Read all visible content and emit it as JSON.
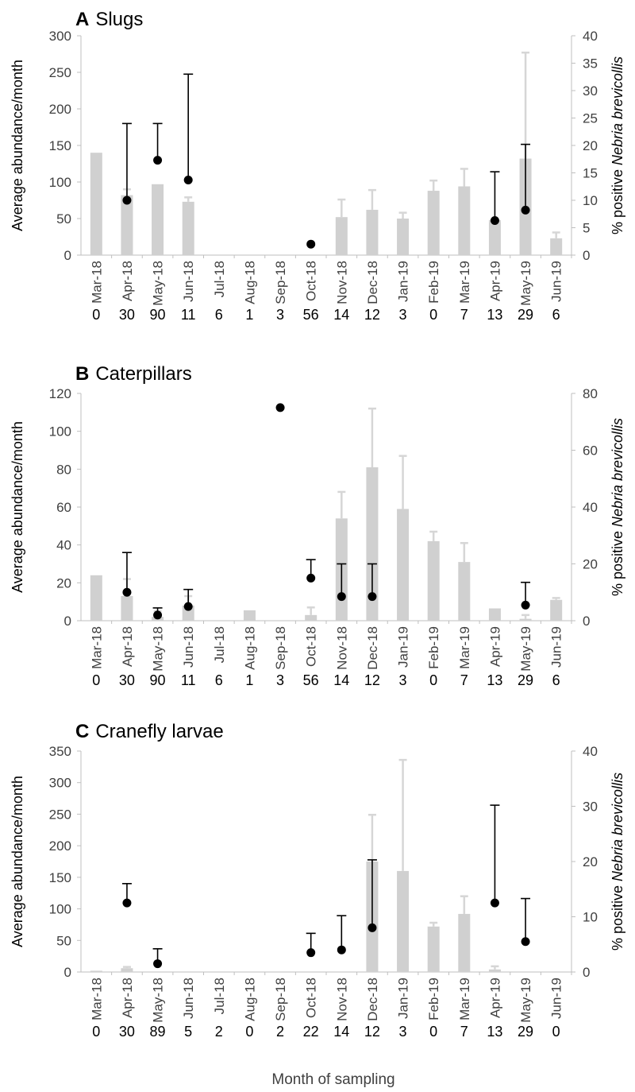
{
  "xlabel": "Month of sampling",
  "colors": {
    "bar": "#d0d0d0",
    "errbar_bar": "#d6d6d6",
    "point": "#000000",
    "axis": "#bfbfbf",
    "text": "#404040"
  },
  "chart_data": [
    {
      "type": "bar",
      "letter": "A",
      "title": "Slugs",
      "ylabel": "Average abundance/month",
      "y2label_prefix": "% positive ",
      "y2label_species": "Nebria brevicollis",
      "ylim": [
        0,
        300
      ],
      "yticks": [
        0,
        50,
        100,
        150,
        200,
        250,
        300
      ],
      "y2lim": [
        0,
        40
      ],
      "y2ticks": [
        0,
        5,
        10,
        15,
        20,
        25,
        30,
        35,
        40
      ],
      "categories": [
        "Mar-18",
        "Apr-18",
        "May-18",
        "Jun-18",
        "Jul-18",
        "Aug-18",
        "Sep-18",
        "Oct-18",
        "Nov-18",
        "Dec-18",
        "Jan-19",
        "Feb-19",
        "Mar-19",
        "Apr-19",
        "May-19",
        "Jun-19"
      ],
      "counts": [
        "0",
        "30",
        "90",
        "11",
        "6",
        "1",
        "3",
        "56",
        "14",
        "12",
        "3",
        "0",
        "7",
        "13",
        "29",
        "6"
      ],
      "series": [
        {
          "kind": "bar",
          "axis": "left",
          "values": [
            140,
            82,
            97,
            73,
            0,
            0,
            0,
            0,
            52,
            62,
            50,
            88,
            94,
            48,
            132,
            23
          ],
          "errors": [
            0,
            8,
            0,
            6,
            0,
            0,
            0,
            0,
            24,
            27,
            8,
            14,
            24,
            0,
            145,
            8
          ]
        },
        {
          "kind": "point",
          "axis": "right",
          "values": [
            null,
            10,
            17.3,
            13.7,
            null,
            null,
            null,
            2,
            null,
            null,
            null,
            null,
            null,
            6.3,
            8.2,
            null
          ],
          "errors": [
            null,
            14,
            6.7,
            19.3,
            null,
            null,
            null,
            0,
            null,
            null,
            null,
            null,
            null,
            8.9,
            12,
            null
          ]
        }
      ]
    },
    {
      "type": "bar",
      "letter": "B",
      "title": "Caterpillars",
      "ylabel": "Average abundance/month",
      "y2label_prefix": "% positive ",
      "y2label_species": "Nebria brevicollis",
      "ylim": [
        0,
        120
      ],
      "yticks": [
        0,
        20,
        40,
        60,
        80,
        100,
        120
      ],
      "y2lim": [
        0,
        80
      ],
      "y2ticks": [
        0,
        20,
        40,
        60,
        80
      ],
      "categories": [
        "Mar-18",
        "Apr-18",
        "May-18",
        "Jun-18",
        "Jul-18",
        "Aug-18",
        "Sep-18",
        "Oct-18",
        "Nov-18",
        "Dec-18",
        "Jan-19",
        "Feb-19",
        "Mar-19",
        "Apr-19",
        "May-19",
        "Jun-19"
      ],
      "counts": [
        "0",
        "30",
        "90",
        "11",
        "6",
        "1",
        "3",
        "56",
        "14",
        "12",
        "3",
        "0",
        "7",
        "13",
        "29",
        "6"
      ],
      "series": [
        {
          "kind": "bar",
          "axis": "left",
          "values": [
            24,
            13,
            2,
            8,
            0,
            5.5,
            0,
            3,
            54,
            81,
            59,
            42,
            31,
            6.5,
            1,
            11
          ],
          "errors": [
            0,
            9,
            3,
            5,
            0,
            0,
            0,
            4,
            14,
            31,
            28,
            5,
            10,
            0,
            2,
            1
          ]
        },
        {
          "kind": "point",
          "axis": "right",
          "values": [
            null,
            10,
            2,
            5,
            null,
            null,
            75,
            15,
            8.5,
            8.5,
            null,
            null,
            null,
            null,
            5.5,
            null
          ],
          "errors": [
            null,
            14,
            2.5,
            6,
            null,
            null,
            0,
            6.5,
            11.5,
            11.5,
            null,
            null,
            null,
            null,
            8,
            null
          ]
        }
      ]
    },
    {
      "type": "bar",
      "letter": "C",
      "title": "Cranefly larvae",
      "ylabel": "Average abundance/month",
      "y2label_prefix": "% positive ",
      "y2label_species": "Nebria brevicollis",
      "ylim": [
        0,
        350
      ],
      "yticks": [
        0,
        50,
        100,
        150,
        200,
        250,
        300,
        350
      ],
      "y2lim": [
        0,
        40
      ],
      "y2ticks": [
        0,
        10,
        20,
        30,
        40
      ],
      "categories": [
        "Mar-18",
        "Apr-18",
        "May-18",
        "Jun-18",
        "Jul-18",
        "Aug-18",
        "Sep-18",
        "Oct-18",
        "Nov-18",
        "Dec-18",
        "Jan-19",
        "Feb-19",
        "Mar-19",
        "Apr-19",
        "May-19",
        "Jun-19"
      ],
      "counts": [
        "0",
        "30",
        "89",
        "5",
        "2",
        "0",
        "2",
        "22",
        "14",
        "12",
        "3",
        "0",
        "7",
        "13",
        "29",
        "0"
      ],
      "series": [
        {
          "kind": "bar",
          "axis": "left",
          "values": [
            2,
            6,
            0,
            0,
            0,
            0,
            0,
            0,
            0,
            175,
            160,
            72,
            92,
            4,
            0,
            0
          ],
          "errors": [
            0,
            2,
            0,
            0,
            0,
            0,
            0,
            0,
            0,
            74,
            176,
            6,
            28,
            5,
            0,
            0
          ]
        },
        {
          "kind": "point",
          "axis": "right",
          "values": [
            null,
            12.5,
            1.5,
            null,
            null,
            null,
            null,
            3.5,
            4,
            8,
            null,
            null,
            null,
            12.5,
            5.5,
            null
          ],
          "errors": [
            null,
            3.5,
            2.7,
            null,
            null,
            null,
            null,
            3.5,
            6.2,
            12.3,
            null,
            null,
            null,
            17.7,
            7.8,
            null
          ]
        }
      ]
    }
  ]
}
